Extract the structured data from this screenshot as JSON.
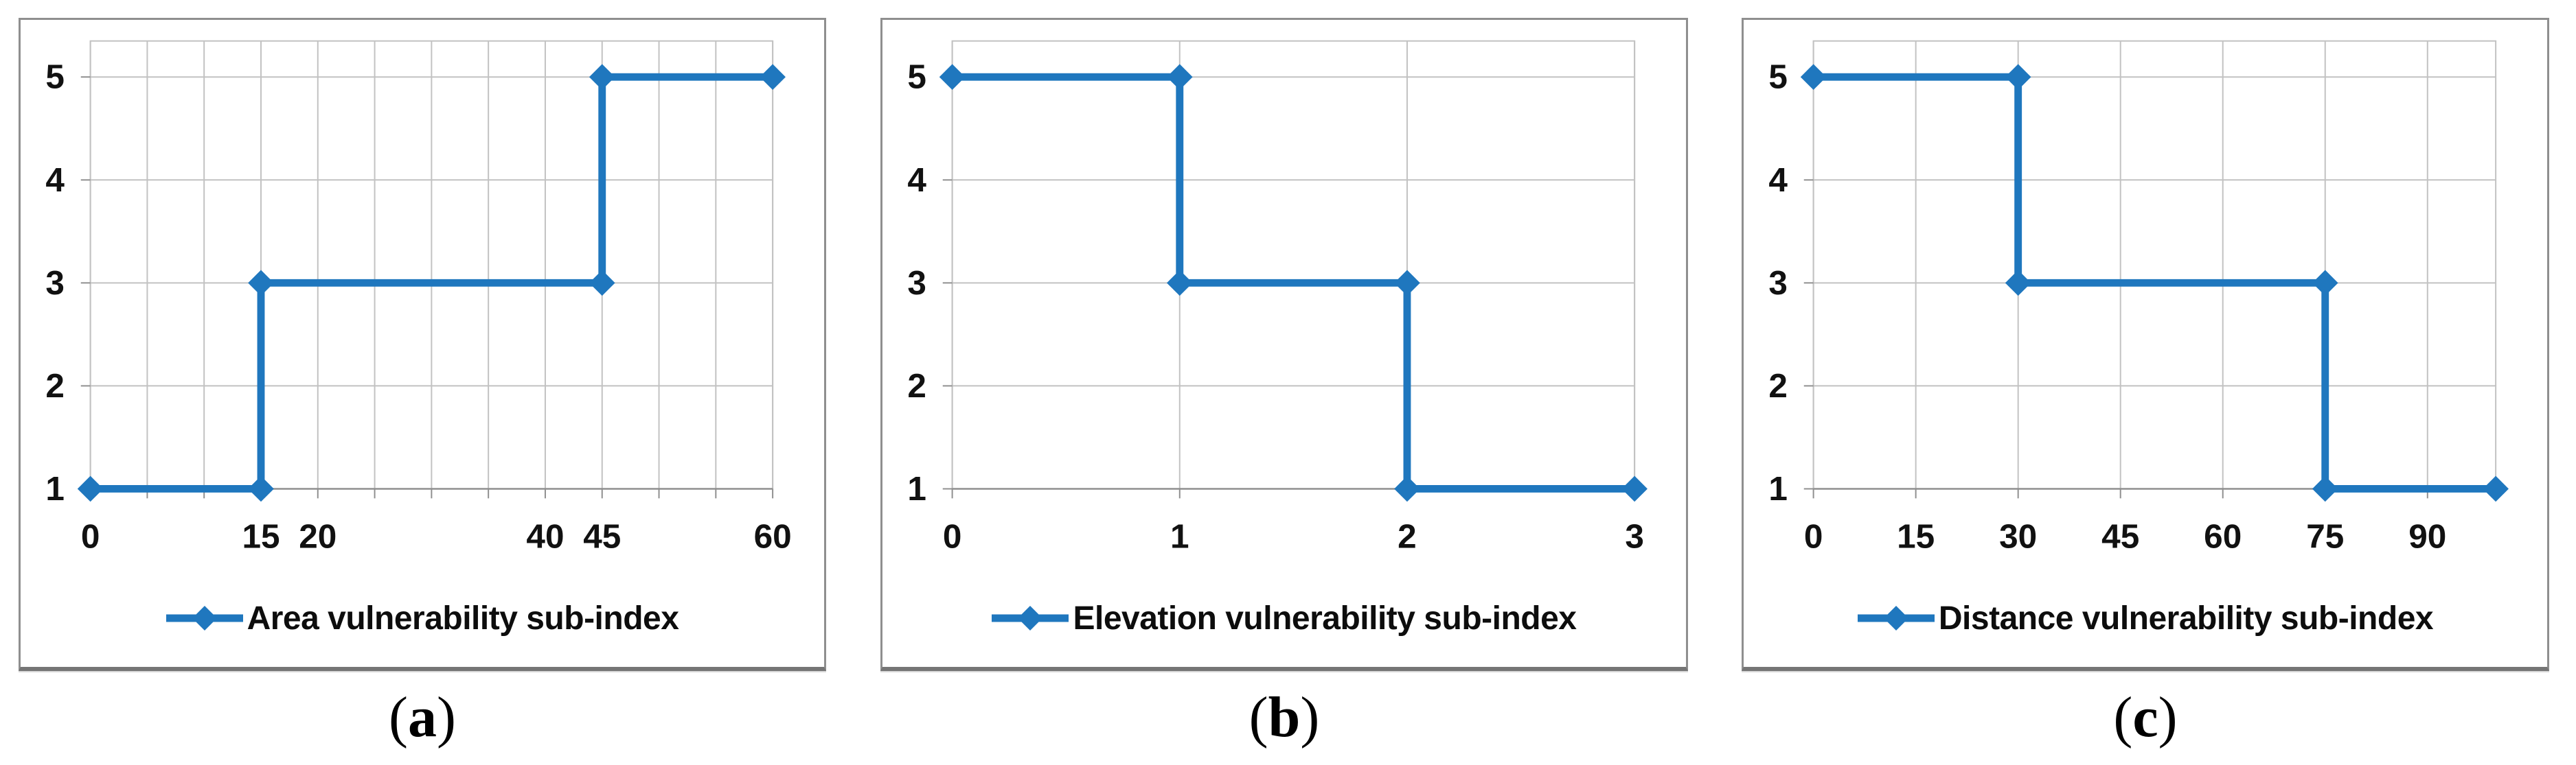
{
  "colors": {
    "series_blue": "#1F77BE",
    "gridline": "#C2C2C2",
    "axis": "#8F8F8F",
    "panel_border": "#8F8F8F",
    "text": "#111111"
  },
  "chart_data": [
    {
      "type": "line",
      "legend": "Area vulnerability sub-index",
      "caption": {
        "open": "(",
        "letter": "a",
        "close": ")"
      },
      "x": [
        0,
        15,
        15,
        45,
        45,
        60
      ],
      "y": [
        1,
        1,
        3,
        3,
        5,
        5
      ],
      "xlim": [
        0,
        60
      ],
      "ylim": [
        1,
        5
      ],
      "x_grid_step": 5,
      "x_grid_max": 60,
      "x_ticks": [
        {
          "v": 0,
          "label": "0"
        },
        {
          "v": 15,
          "label": "15"
        },
        {
          "v": 20,
          "label": "20"
        },
        {
          "v": 40,
          "label": "40"
        },
        {
          "v": 45,
          "label": "45"
        },
        {
          "v": 60,
          "label": "60"
        }
      ],
      "y_ticks": [
        {
          "v": 1,
          "label": "1"
        },
        {
          "v": 2,
          "label": "2"
        },
        {
          "v": 3,
          "label": "3"
        },
        {
          "v": 4,
          "label": "4"
        },
        {
          "v": 5,
          "label": "5"
        }
      ],
      "marker": "diamond",
      "grid": true,
      "legend_position": "bottom"
    },
    {
      "type": "line",
      "legend": "Elevation vulnerability sub-index",
      "caption": {
        "open": "(",
        "letter": "b",
        "close": ")"
      },
      "x": [
        0,
        1,
        1,
        2,
        2,
        3
      ],
      "y": [
        5,
        5,
        3,
        3,
        1,
        1
      ],
      "xlim": [
        0,
        3
      ],
      "ylim": [
        1,
        5
      ],
      "x_grid_step": 1,
      "x_grid_max": 3,
      "x_ticks": [
        {
          "v": 0,
          "label": "0"
        },
        {
          "v": 1,
          "label": "1"
        },
        {
          "v": 2,
          "label": "2"
        },
        {
          "v": 3,
          "label": "3"
        }
      ],
      "y_ticks": [
        {
          "v": 1,
          "label": "1"
        },
        {
          "v": 2,
          "label": "2"
        },
        {
          "v": 3,
          "label": "3"
        },
        {
          "v": 4,
          "label": "4"
        },
        {
          "v": 5,
          "label": "5"
        }
      ],
      "marker": "diamond",
      "grid": true,
      "legend_position": "bottom"
    },
    {
      "type": "line",
      "legend": "Distance vulnerability sub-index",
      "caption": {
        "open": "(",
        "letter": "c",
        "close": ")"
      },
      "x": [
        0,
        30,
        30,
        75,
        75,
        100
      ],
      "y": [
        5,
        5,
        3,
        3,
        1,
        1
      ],
      "xlim": [
        0,
        100
      ],
      "ylim": [
        1,
        5
      ],
      "x_grid_step": 15,
      "x_grid_max": 90,
      "x_ticks": [
        {
          "v": 0,
          "label": "0"
        },
        {
          "v": 15,
          "label": "15"
        },
        {
          "v": 30,
          "label": "30"
        },
        {
          "v": 45,
          "label": "45"
        },
        {
          "v": 60,
          "label": "60"
        },
        {
          "v": 75,
          "label": "75"
        },
        {
          "v": 90,
          "label": "90"
        }
      ],
      "y_ticks": [
        {
          "v": 1,
          "label": "1"
        },
        {
          "v": 2,
          "label": "2"
        },
        {
          "v": 3,
          "label": "3"
        },
        {
          "v": 4,
          "label": "4"
        },
        {
          "v": 5,
          "label": "5"
        }
      ],
      "marker": "diamond",
      "grid": true,
      "legend_position": "bottom"
    }
  ]
}
